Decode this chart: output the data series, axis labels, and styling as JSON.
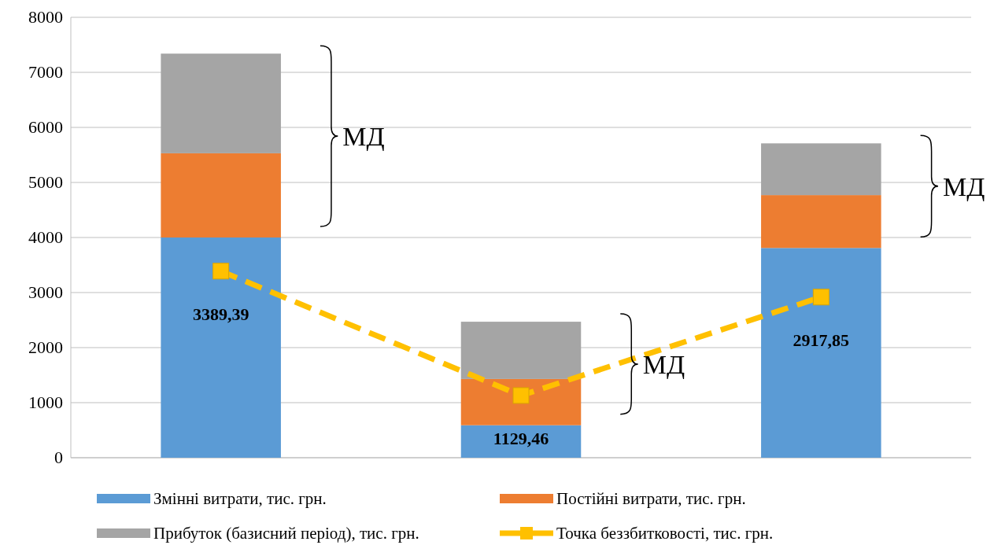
{
  "chart_data": {
    "type": "bar",
    "stacked": true,
    "categories": [
      null,
      null,
      null
    ],
    "series": [
      {
        "name": "Змінні витрати, тис. грн.",
        "color": "#5b9bd5",
        "values": [
          4000,
          590,
          3810
        ]
      },
      {
        "name": "Постійні витрати, тис. грн.",
        "color": "#ed7d31",
        "values": [
          1530,
          840,
          960
        ]
      },
      {
        "name": "Прибуток (базисний період), тис. грн.",
        "color": "#a5a5a5",
        "values": [
          1810,
          1040,
          940
        ]
      },
      {
        "name": "Точка беззбитковості, тис. грн.",
        "type": "line",
        "color": "#ffc000",
        "values": [
          3389.39,
          1129.46,
          2917.85
        ],
        "value_labels": [
          "3389,39",
          "1129,46",
          "2917,85"
        ],
        "marker": "square",
        "line_style": "dashed"
      }
    ],
    "ylim": [
      0,
      8000
    ],
    "yticks": [
      0,
      1000,
      2000,
      3000,
      4000,
      5000,
      6000,
      7000,
      8000
    ],
    "grid": "y",
    "legend": "bottom",
    "annotations": [
      "МД",
      "МД",
      "МД"
    ]
  }
}
